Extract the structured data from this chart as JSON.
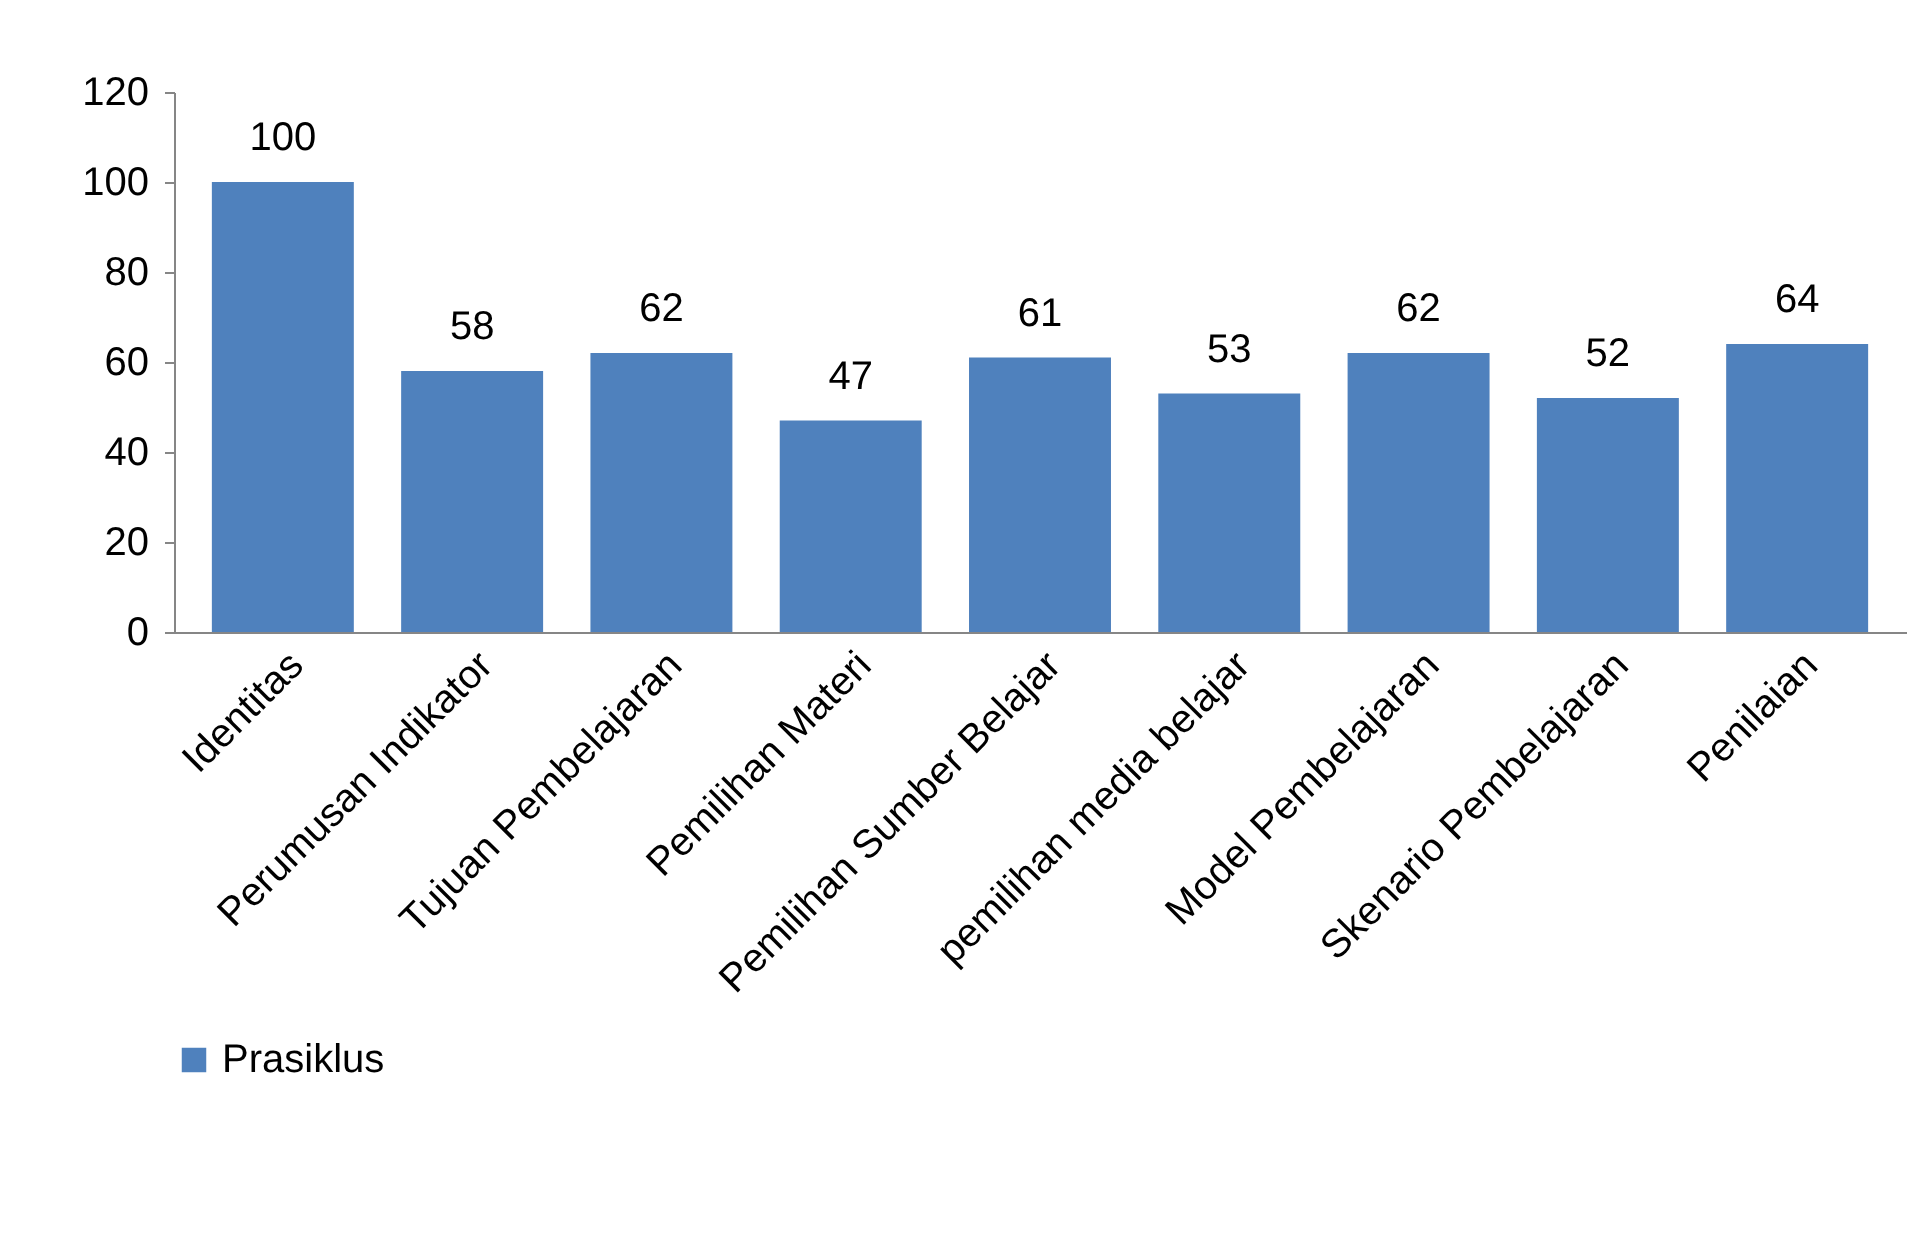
{
  "chart_data": {
    "type": "bar",
    "categories": [
      "Identitas",
      "Perumusan Indikator",
      "Tujuan Pembelajaran",
      "Pemilihan Materi",
      "Pemilihan Sumber Belajar",
      "pemilihan media belajar",
      "Model Pembelajaran",
      "Skenario Pembelajaran",
      "Penilaian"
    ],
    "series": [
      {
        "name": "Prasiklus",
        "color": "#4f81bd",
        "values": [
          100,
          58,
          62,
          47,
          61,
          53,
          62,
          52,
          64
        ]
      }
    ],
    "ylim": [
      0,
      120
    ],
    "yticks": [
      0,
      20,
      40,
      60,
      80,
      100,
      120
    ],
    "data_labels": true,
    "legend": "bottom"
  }
}
